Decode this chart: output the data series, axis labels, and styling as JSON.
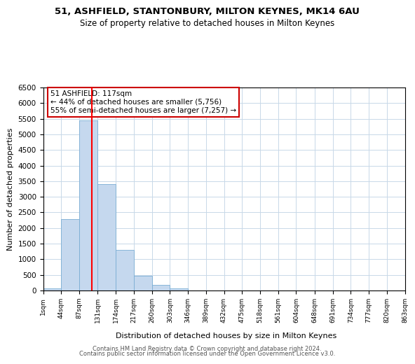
{
  "title": "51, ASHFIELD, STANTONBURY, MILTON KEYNES, MK14 6AU",
  "subtitle": "Size of property relative to detached houses in Milton Keynes",
  "xlabel": "Distribution of detached houses by size in Milton Keynes",
  "ylabel": "Number of detached properties",
  "bar_color": "#c5d8ee",
  "bar_edge_color": "#7aadd4",
  "bar_values": [
    60,
    2280,
    5450,
    3400,
    1310,
    480,
    170,
    60,
    0,
    0,
    0,
    0,
    0,
    0,
    0,
    0,
    0,
    0,
    0,
    0
  ],
  "bin_edges": [
    1,
    44,
    87,
    131,
    174,
    217,
    260,
    303,
    346,
    389,
    432,
    475,
    518,
    561,
    604,
    648,
    691,
    734,
    777,
    820,
    863
  ],
  "tick_labels": [
    "1sqm",
    "44sqm",
    "87sqm",
    "131sqm",
    "174sqm",
    "217sqm",
    "260sqm",
    "303sqm",
    "346sqm",
    "389sqm",
    "432sqm",
    "475sqm",
    "518sqm",
    "561sqm",
    "604sqm",
    "648sqm",
    "691sqm",
    "734sqm",
    "777sqm",
    "820sqm",
    "863sqm"
  ],
  "red_line_x": 117,
  "annotation_title": "51 ASHFIELD: 117sqm",
  "annotation_line1": "← 44% of detached houses are smaller (5,756)",
  "annotation_line2": "55% of semi-detached houses are larger (7,257) →",
  "annotation_box_color": "#ffffff",
  "annotation_box_edge": "#cc0000",
  "ylim": [
    0,
    6500
  ],
  "yticks": [
    0,
    500,
    1000,
    1500,
    2000,
    2500,
    3000,
    3500,
    4000,
    4500,
    5000,
    5500,
    6000,
    6500
  ],
  "footer1": "Contains HM Land Registry data © Crown copyright and database right 2024.",
  "footer2": "Contains public sector information licensed under the Open Government Licence v3.0.",
  "background_color": "#ffffff",
  "grid_color": "#c8d8e8"
}
